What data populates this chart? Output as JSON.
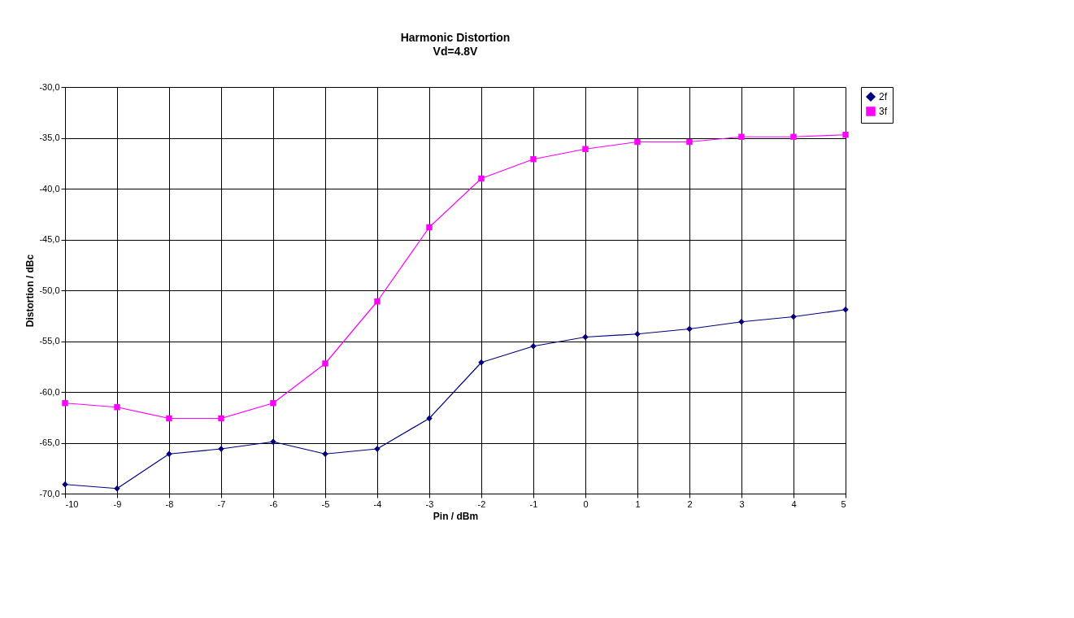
{
  "chart_data": {
    "type": "line",
    "title": "Harmonic Distortion",
    "subtitle": "Vd=4.8V",
    "xlabel": "Pin / dBm",
    "ylabel": "Distortion / dBc",
    "x": [
      -10,
      -9,
      -8,
      -7,
      -6,
      -5,
      -4,
      -3,
      -2,
      -1,
      0,
      1,
      2,
      3,
      4,
      5
    ],
    "series": [
      {
        "name": "2f",
        "color": "#000080",
        "marker": "diamond",
        "values": [
          -69.1,
          -69.5,
          -66.1,
          -65.6,
          -64.9,
          -66.1,
          -65.6,
          -62.6,
          -57.1,
          -55.5,
          -54.6,
          -54.3,
          -53.8,
          -53.1,
          -52.6,
          -51.9
        ]
      },
      {
        "name": "3f",
        "color": "#ff00ff",
        "marker": "square",
        "values": [
          -61.1,
          -61.5,
          -62.6,
          -62.6,
          -61.1,
          -57.2,
          -51.1,
          -43.8,
          -39.0,
          -37.1,
          -36.1,
          -35.4,
          -35.4,
          -34.9,
          -34.9,
          -34.7
        ]
      }
    ],
    "xlim": [
      -10,
      5
    ],
    "xticks": [
      -10,
      -9,
      -8,
      -7,
      -6,
      -5,
      -4,
      -3,
      -2,
      -1,
      0,
      1,
      2,
      3,
      4,
      5
    ],
    "ylim": [
      -70,
      -30
    ],
    "yticks": [
      {
        "value": -70,
        "label": "-70,0"
      },
      {
        "value": -65,
        "label": "-65,0"
      },
      {
        "value": -60,
        "label": "-60,0"
      },
      {
        "value": -55,
        "label": "-55,0"
      },
      {
        "value": -50,
        "label": "-50,0"
      },
      {
        "value": -45,
        "label": "-45,0"
      },
      {
        "value": -40,
        "label": "-40,0"
      },
      {
        "value": -35,
        "label": "-35,0"
      },
      {
        "value": -30,
        "label": "-30,0"
      }
    ],
    "grid": true,
    "legend": "right",
    "line_style": "solid"
  }
}
